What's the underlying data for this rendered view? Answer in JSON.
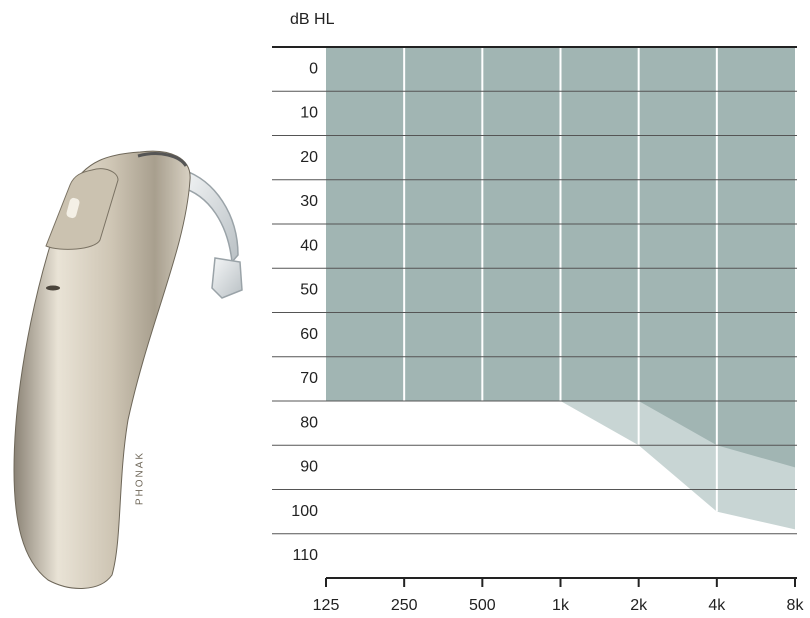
{
  "device": {
    "brand": "PHONAK"
  },
  "chart_data": {
    "type": "area",
    "y_label": "dB HL",
    "categories": [
      "125",
      "250",
      "500",
      "1k",
      "2k",
      "4k",
      "8k"
    ],
    "series": [
      {
        "color": "#c8d5d4",
        "values": [
          75,
          75,
          75,
          75,
          85,
          100,
          104
        ]
      },
      {
        "color": "#a1b5b3",
        "values": [
          75,
          75,
          75,
          75,
          75,
          85,
          90
        ]
      }
    ],
    "ylim": [
      -5,
      115
    ],
    "y_inverted": true,
    "yticks": [
      0,
      10,
      20,
      30,
      40,
      50,
      60,
      70,
      80,
      90,
      100,
      110
    ],
    "y_gridlines": [
      5,
      15,
      25,
      35,
      45,
      55,
      65,
      75,
      85,
      95,
      105
    ]
  }
}
